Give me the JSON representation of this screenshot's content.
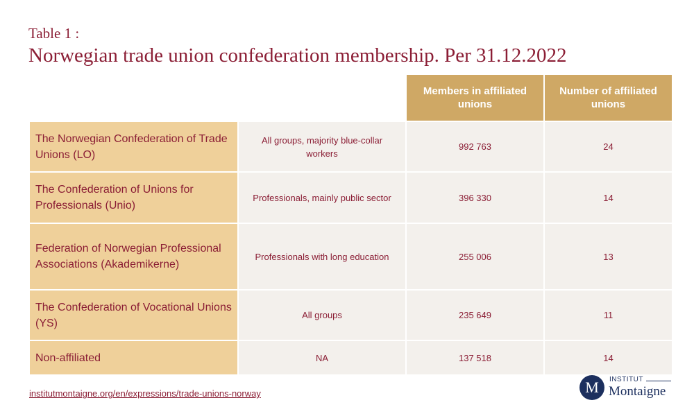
{
  "header": {
    "table_label": "Table 1 :",
    "title": "Norwegian trade union confederation membership. Per 31.12.2022"
  },
  "table": {
    "columns": [
      "",
      "",
      "Members in affiliated unions",
      "Number of affiliated unions"
    ],
    "rows": [
      [
        "The Norwegian Confederation of Trade Unions (LO)",
        "All groups, majority blue-collar workers",
        "992 763",
        "24"
      ],
      [
        "The Confederation of Unions for Professionals (Unio)",
        "Professionals, mainly public sector",
        "396 330",
        "14"
      ],
      [
        "Federation of Norwegian Professional Associations (Akademikerne)",
        "Professionals with long education",
        "255 006",
        "13"
      ],
      [
        "The Confederation of Vocational Unions (YS)",
        "All groups",
        "235 649",
        "11"
      ],
      [
        "Non-affiliated",
        "NA",
        "137 518",
        "14"
      ]
    ]
  },
  "footer": {
    "source_url": "institutmontaigne.org/en/expressions/trade-unions-norway",
    "logo": {
      "letter": "M",
      "top_text": "INSTITUT",
      "bottom_text": "Montaigne"
    }
  },
  "colors": {
    "title": "#8b1e35",
    "header_fill": "#cfa865",
    "name_fill": "#efd09a",
    "cell_fill": "#f3f0ec",
    "logo": "#1c2f5e"
  }
}
